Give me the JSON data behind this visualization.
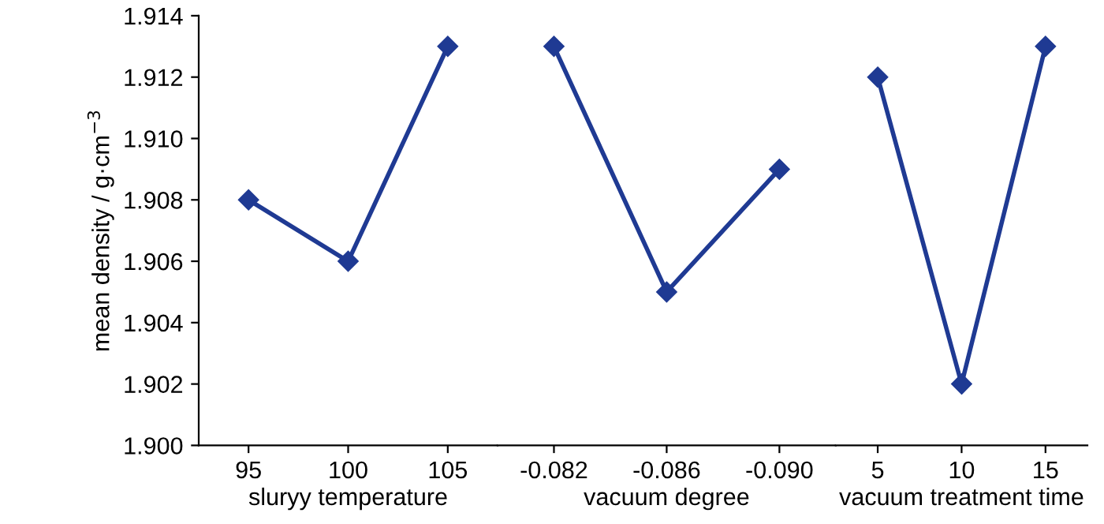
{
  "chart_data": [
    {
      "type": "line",
      "ylabel": "mean density / g·cm$^{−3}$",
      "xlabel": "sluryy temperature",
      "categories": [
        "95",
        "100",
        "105"
      ],
      "series": [
        {
          "color": "#1f3a93",
          "values": [
            1.908,
            1.906,
            1.913
          ]
        }
      ],
      "ylim": [
        1.9,
        1.914
      ],
      "yticks": [
        {
          "value": 1.9,
          "label": "1.900"
        },
        {
          "value": 1.902,
          "label": "1.902"
        },
        {
          "value": 1.904,
          "label": "1.904"
        },
        {
          "value": 1.906,
          "label": "1.906"
        },
        {
          "value": 1.908,
          "label": "1.908"
        },
        {
          "value": 1.91,
          "label": "1.910"
        },
        {
          "value": 1.912,
          "label": "1.912"
        },
        {
          "value": 1.914,
          "label": "1.914"
        }
      ],
      "marker": "diamond",
      "line_style": "solid",
      "grid": false,
      "legend": false
    },
    {
      "type": "line",
      "xlabel": "vacuum degree",
      "categories": [
        "-0.082",
        "-0.086",
        "-0.090"
      ],
      "series": [
        {
          "color": "#1f3a93",
          "values": [
            1.913,
            1.905,
            1.909
          ]
        }
      ],
      "ylim": [
        1.9,
        1.914
      ],
      "tick_labels": "x",
      "marker": "diamond",
      "line_style": "solid",
      "grid": false,
      "legend": false
    },
    {
      "type": "line",
      "xlabel": "vacuum treatment time",
      "categories": [
        "5",
        "10",
        "15"
      ],
      "series": [
        {
          "color": "#1f3a93",
          "values": [
            1.912,
            1.902,
            1.913
          ]
        }
      ],
      "ylim": [
        1.9,
        1.914
      ],
      "tick_labels": "x",
      "marker": "diamond",
      "line_style": "solid",
      "grid": false,
      "legend": false
    }
  ]
}
